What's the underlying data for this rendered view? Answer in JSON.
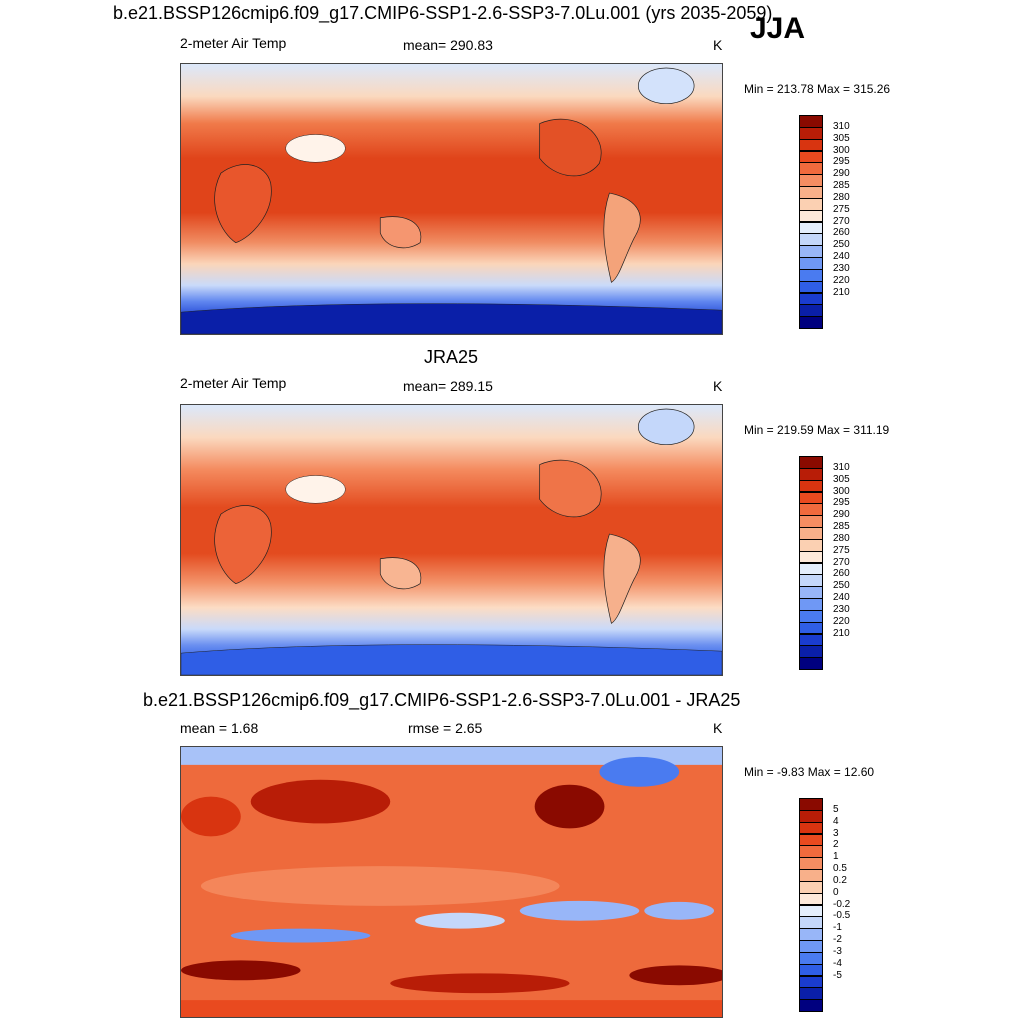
{
  "header": {
    "title": "b.e21.BSSP126cmip6.f09_g17.CMIP6-SSP1-2.6-SSP3-7.0Lu.001 (yrs 2035-2059)",
    "season": "JJA"
  },
  "colors": {
    "temp_scale": [
      "#00007f",
      "#0a1fa8",
      "#1a3ccf",
      "#2f5ee6",
      "#4a7bf0",
      "#6f98f5",
      "#98b6f8",
      "#c4d7fa",
      "#e4eefc",
      "#fde9da",
      "#fbd0b2",
      "#f8b08a",
      "#f58d62",
      "#f06a3d",
      "#e94a1f",
      "#d83410",
      "#b81d07",
      "#8a0a00"
    ],
    "diff_scale": [
      "#00007f",
      "#0a1fa8",
      "#1a3ccf",
      "#2f5ee6",
      "#4a7bf0",
      "#6f98f5",
      "#98b6f8",
      "#c4d7fa",
      "#e4eefc",
      "#fde9da",
      "#fbd0b2",
      "#f8b08a",
      "#f58d62",
      "#f06a3d",
      "#e94a1f",
      "#d83410",
      "#b81d07",
      "#8a0a00"
    ]
  },
  "panels": [
    {
      "title": "",
      "left_label": "2-meter Air Temp",
      "center_label": "mean= 290.83",
      "units": "K",
      "minmax": "Min = 213.78 Max = 315.26",
      "colorbar_labels": [
        "310",
        "305",
        "300",
        "295",
        "290",
        "285",
        "280",
        "275",
        "270",
        "260",
        "250",
        "240",
        "230",
        "220",
        "210"
      ]
    },
    {
      "title": "JRA25",
      "left_label": "2-meter Air Temp",
      "center_label": "mean= 289.15",
      "units": "K",
      "minmax": "Min = 219.59 Max = 311.19",
      "colorbar_labels": [
        "310",
        "305",
        "300",
        "295",
        "290",
        "285",
        "280",
        "275",
        "270",
        "260",
        "250",
        "240",
        "230",
        "220",
        "210"
      ]
    },
    {
      "title": "b.e21.BSSP126cmip6.f09_g17.CMIP6-SSP1-2.6-SSP3-7.0Lu.001 - JRA25",
      "left_label": "mean =   1.68",
      "center_label": "rmse =   2.65",
      "units": "K",
      "minmax": "Min =  -9.83 Max =  12.60",
      "colorbar_labels": [
        "5",
        "4",
        "3",
        "2",
        "1",
        "0.5",
        "0.2",
        "0",
        "-0.2",
        "-0.5",
        "-1",
        "-2",
        "-3",
        "-4",
        "-5"
      ]
    }
  ]
}
